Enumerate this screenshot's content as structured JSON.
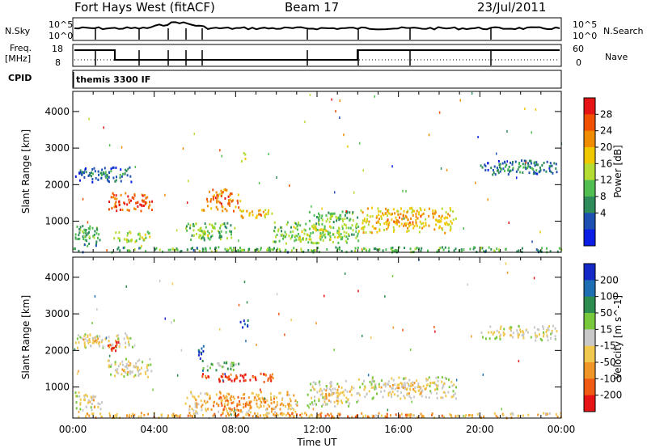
{
  "header": {
    "radar": "Fort Hays West (fitACF)",
    "beam": "Beam 17",
    "date": "23/Jul/2011"
  },
  "top_panels": {
    "nsky_label": "N.Sky",
    "nsky_ticks": [
      "10^5",
      "10^0"
    ],
    "nsearch_label": "N.Search",
    "nsearch_ticks": [
      "10^5",
      "10^0"
    ],
    "freq_label": "Freq.",
    "freq_unit": "[MHz]",
    "freq_ticks": [
      "18",
      "8"
    ],
    "nave_label": "Nave",
    "nave_ticks": [
      "60",
      "0"
    ],
    "cpid_label": "CPID",
    "cpid_value": "themis 3300 IF"
  },
  "chart_data": [
    {
      "type": "heatmap",
      "name": "power",
      "ylabel": "Slant Range [km]",
      "yticks": [
        "1000",
        "2000",
        "3000",
        "4000"
      ],
      "ylim": [
        150,
        4550
      ],
      "xlim": [
        0,
        24
      ],
      "colorbar": {
        "label": "Power [dB]",
        "ticks": [
          "4",
          "8",
          "12",
          "16",
          "20",
          "24",
          "28"
        ],
        "colors": [
          "#0a1ee6",
          "#1e50b4",
          "#2d8c5a",
          "#50be50",
          "#b4dc32",
          "#f0c800",
          "#f08c00",
          "#f05000",
          "#e61414"
        ]
      },
      "echo_regions": [
        {
          "t0": 0.1,
          "t1": 2.9,
          "r0": 2100,
          "r1": 2500,
          "level": 0.15
        },
        {
          "t0": 1.7,
          "t1": 3.9,
          "r0": 1300,
          "r1": 1800,
          "level": 0.85
        },
        {
          "t0": 0.1,
          "t1": 1.4,
          "r0": 350,
          "r1": 900,
          "level": 0.3
        },
        {
          "t0": 1.9,
          "t1": 3.8,
          "r0": 450,
          "r1": 750,
          "level": 0.45
        },
        {
          "t0": 6.3,
          "t1": 8.2,
          "r0": 1300,
          "r1": 1900,
          "level": 0.75
        },
        {
          "t0": 8.0,
          "t1": 9.8,
          "r0": 1100,
          "r1": 1350,
          "level": 0.6
        },
        {
          "t0": 5.5,
          "t1": 8.0,
          "r0": 500,
          "r1": 1000,
          "level": 0.35
        },
        {
          "t0": 8.2,
          "t1": 8.7,
          "r0": 2600,
          "r1": 2900,
          "level": 0.5
        },
        {
          "t0": 9.8,
          "t1": 14.0,
          "r0": 400,
          "r1": 1000,
          "level": 0.4
        },
        {
          "t0": 11.5,
          "t1": 14.0,
          "r0": 1000,
          "r1": 1300,
          "level": 0.35
        },
        {
          "t0": 14.0,
          "t1": 18.8,
          "r0": 700,
          "r1": 1400,
          "level": 0.6
        },
        {
          "t0": 0.0,
          "t1": 24.0,
          "r0": 180,
          "r1": 320,
          "level": 0.3
        },
        {
          "t0": 20.0,
          "t1": 23.8,
          "r0": 2300,
          "r1": 2700,
          "level": 0.15
        }
      ]
    },
    {
      "type": "heatmap",
      "name": "velocity",
      "ylabel": "Slant Range [km]",
      "yticks": [
        "1000",
        "2000",
        "3000",
        "4000"
      ],
      "ylim": [
        150,
        4550
      ],
      "xlim": [
        0,
        24
      ],
      "xticks": [
        "00:00",
        "04:00",
        "08:00",
        "12:00",
        "16:00",
        "20:00",
        "00:00"
      ],
      "xlabel": "Time UT",
      "colorbar": {
        "label": "Velocity [m s^-1]",
        "ticks": [
          "200",
          "100",
          "50",
          "15",
          "-15",
          "-50",
          "-100",
          "-200"
        ],
        "colors": [
          "#1428c8",
          "#1e6eb4",
          "#2d8c50",
          "#78c83c",
          "#c8c8c8",
          "#f0c850",
          "#f09628",
          "#f05a14",
          "#e61414"
        ]
      },
      "echo_regions": [
        {
          "t0": 0.1,
          "t1": 2.9,
          "r0": 2100,
          "r1": 2500,
          "level": 0.5
        },
        {
          "t0": 1.7,
          "t1": 3.9,
          "r0": 1300,
          "r1": 1800,
          "level": 0.5
        },
        {
          "t0": 1.7,
          "t1": 2.3,
          "r0": 2000,
          "r1": 2300,
          "level": 0.9
        },
        {
          "t0": 0.1,
          "t1": 1.4,
          "r0": 350,
          "r1": 900,
          "level": 0.5
        },
        {
          "t0": 6.3,
          "t1": 8.2,
          "r0": 1450,
          "r1": 1750,
          "level": 0.3
        },
        {
          "t0": 6.2,
          "t1": 9.9,
          "r0": 1150,
          "r1": 1400,
          "level": 0.85
        },
        {
          "t0": 5.5,
          "t1": 11.0,
          "r0": 300,
          "r1": 900,
          "level": 0.65
        },
        {
          "t0": 6.0,
          "t1": 6.4,
          "r0": 1800,
          "r1": 2200,
          "level": 0.05
        },
        {
          "t0": 8.2,
          "t1": 8.7,
          "r0": 2600,
          "r1": 2900,
          "level": 0.05
        },
        {
          "t0": 11.5,
          "t1": 14.0,
          "r0": 500,
          "r1": 1200,
          "level": 0.5
        },
        {
          "t0": 14.0,
          "t1": 18.8,
          "r0": 700,
          "r1": 1300,
          "level": 0.5
        },
        {
          "t0": 0.0,
          "t1": 24.0,
          "r0": 180,
          "r1": 320,
          "level": 0.65
        },
        {
          "t0": 20.0,
          "t1": 23.8,
          "r0": 2300,
          "r1": 2700,
          "level": 0.5
        }
      ]
    }
  ]
}
